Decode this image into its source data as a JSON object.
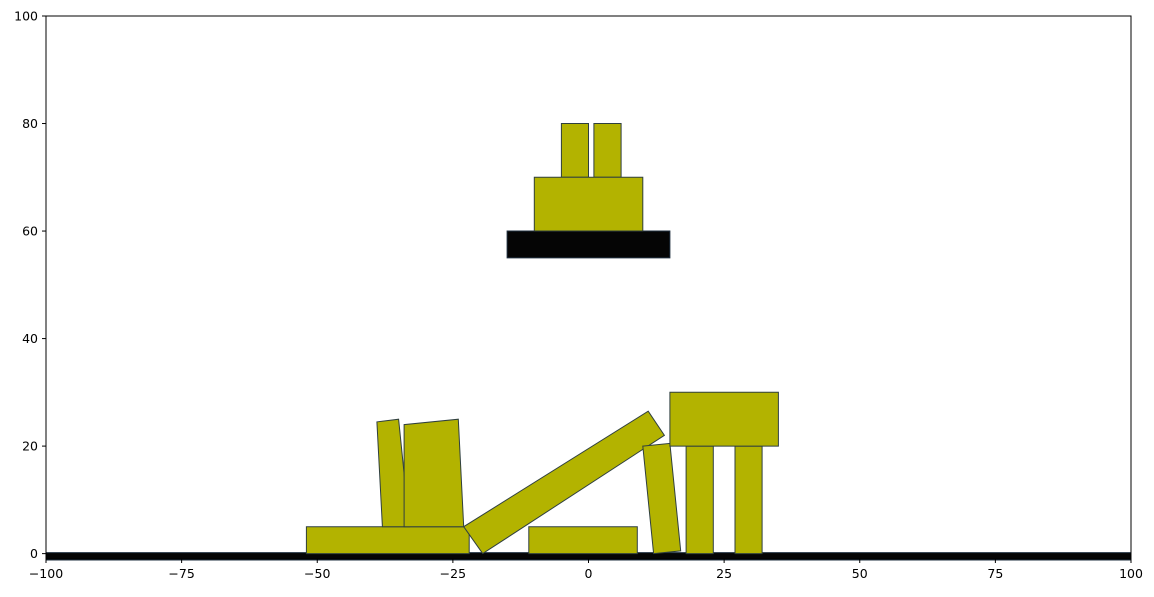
{
  "chart_data": {
    "type": "scatter",
    "title": "",
    "xlabel": "",
    "ylabel": "",
    "xlim": [
      -100,
      100
    ],
    "ylim": [
      -1,
      100
    ],
    "grid": false,
    "x_ticks": [
      -100,
      -75,
      -50,
      -25,
      0,
      25,
      50,
      75,
      100
    ],
    "x_tick_labels": [
      "−100",
      "−75",
      "−50",
      "−25",
      "0",
      "25",
      "50",
      "75",
      "100"
    ],
    "y_ticks": [
      0,
      20,
      40,
      60,
      80,
      100
    ],
    "y_tick_labels": [
      "0",
      "20",
      "40",
      "60",
      "80",
      "100"
    ],
    "colors": {
      "block_fill": "#b3b300",
      "block_edge": "#2f3f3f",
      "static_fill": "#050505",
      "static_edge": "#203040"
    },
    "ground": {
      "x_range": [
        -100,
        100
      ],
      "y_range": [
        -1,
        0
      ]
    },
    "static_bodies": [
      {
        "corners": [
          [
            -15,
            55
          ],
          [
            15,
            55
          ],
          [
            15,
            60
          ],
          [
            -15,
            60
          ]
        ]
      }
    ],
    "blocks": [
      {
        "corners": [
          [
            -5,
            70
          ],
          [
            0,
            70
          ],
          [
            0,
            80
          ],
          [
            -5,
            80
          ]
        ]
      },
      {
        "corners": [
          [
            1,
            70
          ],
          [
            6,
            70
          ],
          [
            6,
            80
          ],
          [
            1,
            80
          ]
        ]
      },
      {
        "corners": [
          [
            -10,
            60
          ],
          [
            10,
            60
          ],
          [
            10,
            70
          ],
          [
            -10,
            70
          ]
        ]
      },
      {
        "corners": [
          [
            -52,
            0
          ],
          [
            -22,
            0
          ],
          [
            -22,
            5
          ],
          [
            -52,
            5
          ]
        ]
      },
      {
        "corners": [
          [
            -38,
            5
          ],
          [
            -33,
            5
          ],
          [
            -35,
            25
          ],
          [
            -39,
            24.5
          ]
        ]
      },
      {
        "corners": [
          [
            -34,
            5
          ],
          [
            -23,
            5
          ],
          [
            -24,
            25
          ],
          [
            -34,
            24
          ]
        ]
      },
      {
        "corners": [
          [
            -23,
            5
          ],
          [
            -19.5,
            0
          ],
          [
            14,
            22
          ],
          [
            11,
            26.5
          ]
        ]
      },
      {
        "corners": [
          [
            -11,
            0
          ],
          [
            9,
            0
          ],
          [
            9,
            5
          ],
          [
            -11,
            5
          ]
        ]
      },
      {
        "corners": [
          [
            10,
            20
          ],
          [
            15,
            20.5
          ],
          [
            17,
            0.5
          ],
          [
            12,
            0
          ]
        ]
      },
      {
        "corners": [
          [
            18,
            0
          ],
          [
            23,
            0
          ],
          [
            23,
            20
          ],
          [
            18,
            20
          ]
        ]
      },
      {
        "corners": [
          [
            27,
            0
          ],
          [
            32,
            0
          ],
          [
            32,
            20
          ],
          [
            27,
            20
          ]
        ]
      },
      {
        "corners": [
          [
            15,
            20
          ],
          [
            35,
            20
          ],
          [
            35,
            30
          ],
          [
            15,
            30
          ]
        ]
      }
    ]
  }
}
